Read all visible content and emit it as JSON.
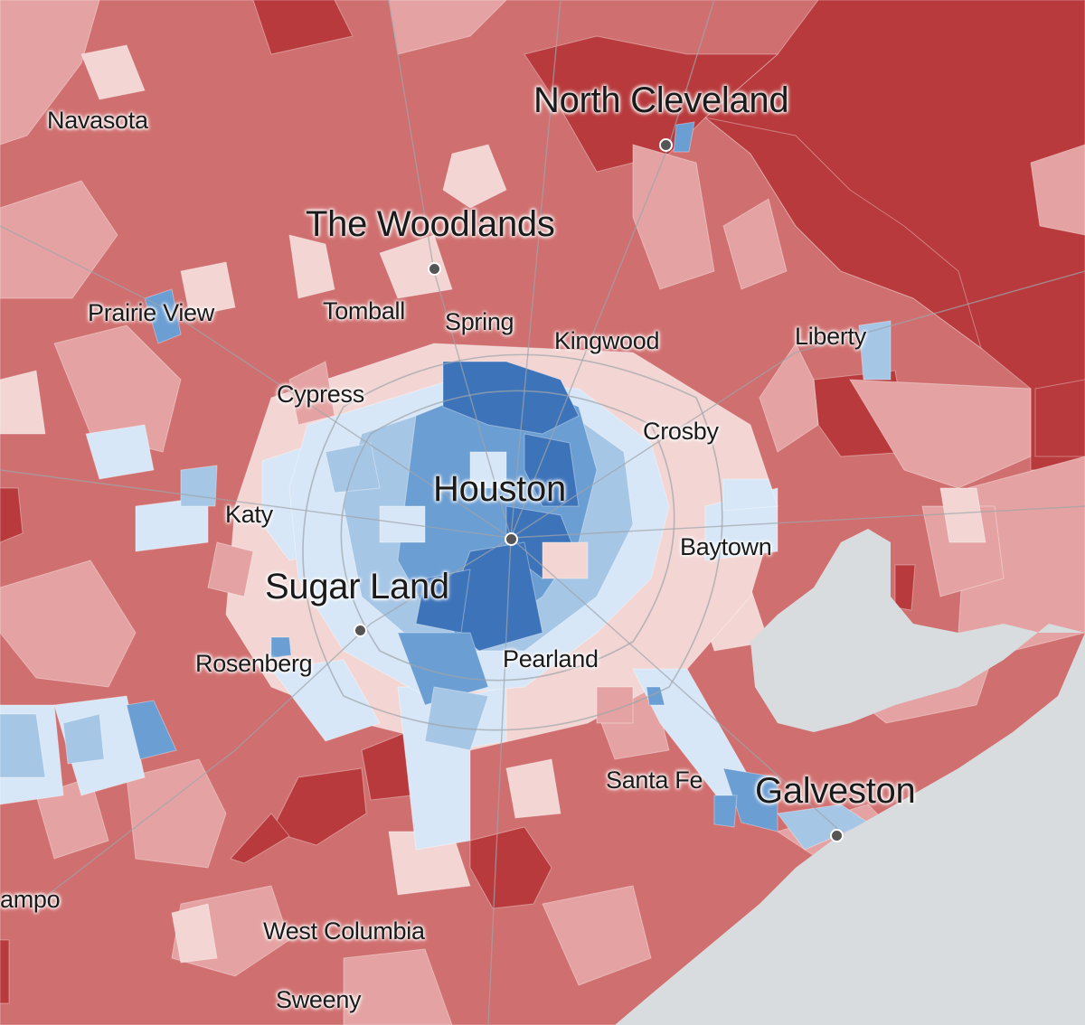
{
  "map": {
    "colors": {
      "rep_strong": "#b83a3c",
      "rep_likely": "#d06f6f",
      "rep_lean": "#e4a3a2",
      "rep_tilt": "#f3d6d4",
      "dem_tilt": "#d7e7f7",
      "dem_lean": "#a6c6e6",
      "dem_likely": "#6b9ed3",
      "dem_strong": "#3d73b9",
      "water": "#d9dcdf",
      "road": "#9ea4aa"
    },
    "places": {
      "navasota": "Navasota",
      "north_cleveland": "North Cleveland",
      "the_woodlands": "The Woodlands",
      "prairie_view": "Prairie View",
      "tomball": "Tomball",
      "spring": "Spring",
      "kingwood": "Kingwood",
      "liberty": "Liberty",
      "cypress": "Cypress",
      "crosby": "Crosby",
      "houston": "Houston",
      "katy": "Katy",
      "baytown": "Baytown",
      "sugar_land": "Sugar Land",
      "rosenberg": "Rosenberg",
      "pearland": "Pearland",
      "santa_fe": "Santa Fe",
      "galveston": "Galveston",
      "campo": "ampo",
      "west_columbia": "West Columbia",
      "sweeny": "Sweeny"
    }
  }
}
